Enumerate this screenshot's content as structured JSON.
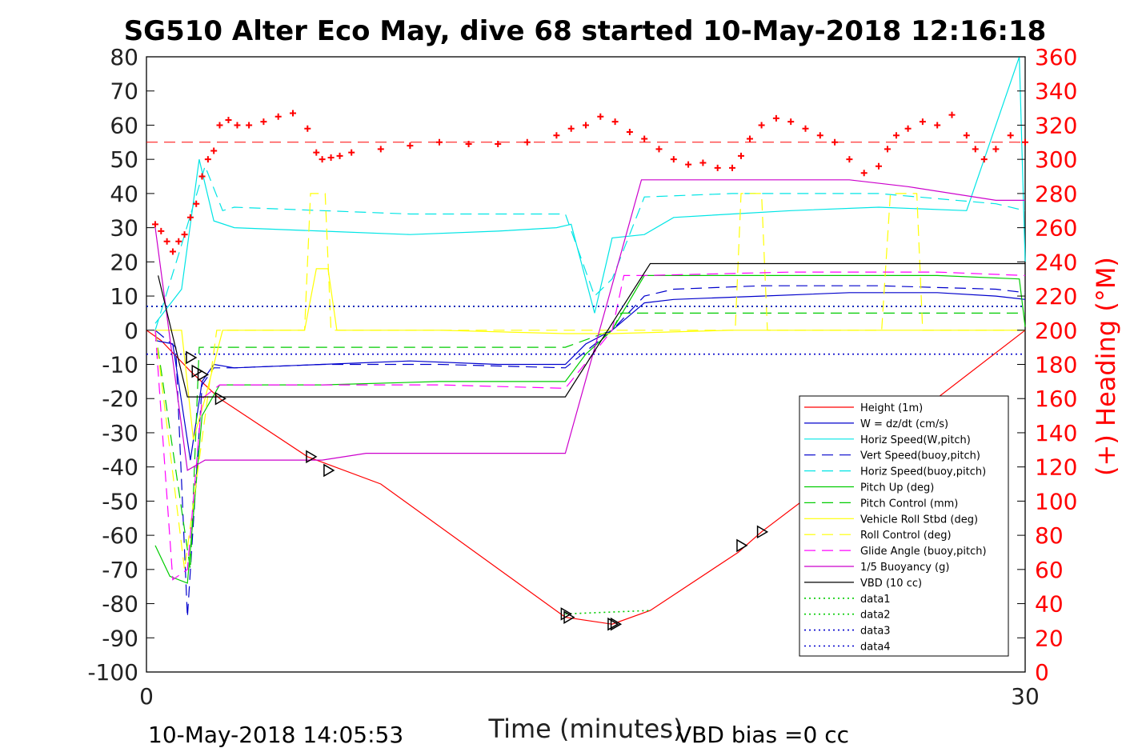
{
  "chart_data": {
    "type": "line",
    "title": "SG510 Alter Eco May, dive 68 started 10-May-2018 12:16:18",
    "xlabel": "Time (minutes)",
    "ylabel": "",
    "y2label": "(+) Heading (°M)",
    "xlim": [
      0,
      30
    ],
    "ylim": [
      -100,
      80
    ],
    "y2lim": [
      0,
      360
    ],
    "x_ticks": [
      "0",
      "30"
    ],
    "y_ticks": [
      "80",
      "70",
      "60",
      "50",
      "40",
      "30",
      "20",
      "10",
      "0",
      "-10",
      "-20",
      "-30",
      "-40",
      "-50",
      "-60",
      "-70",
      "-80",
      "-90",
      "-100"
    ],
    "y2_ticks": [
      "360",
      "340",
      "320",
      "300",
      "280",
      "260",
      "240",
      "220",
      "200",
      "180",
      "160",
      "140",
      "120",
      "100",
      "80",
      "60",
      "40",
      "20",
      "0"
    ],
    "footer_left": "10-May-2018 14:05:53",
    "footer_right": "VBD bias =0 cc",
    "legend_position": "lower-right",
    "series": [
      {
        "name": "Height (1m)",
        "color": "#ff0000",
        "style": "solid",
        "x": [
          0,
          0.5,
          1.5,
          2.5,
          5.5,
          8,
          14.3,
          15.9,
          17.2,
          20.2,
          21,
          25,
          30
        ],
        "y": [
          0,
          -3,
          -12,
          -20,
          -37,
          -45,
          -84,
          -86,
          -82,
          -65,
          -59,
          -33,
          0
        ]
      },
      {
        "name": "W = dz/dt (cm/s)",
        "color": "#0000cc",
        "style": "solid",
        "x": [
          0.3,
          0.9,
          1.5,
          1.9,
          2.3,
          3,
          6,
          9,
          12,
          14.3,
          15,
          15.9,
          17,
          18,
          21,
          24,
          27,
          29,
          30
        ],
        "y": [
          -3,
          -4,
          -38,
          -15,
          -10,
          -11,
          -10,
          -9,
          -10,
          -10,
          -4,
          0,
          8,
          9,
          10,
          11,
          11,
          10,
          9
        ]
      },
      {
        "name": "Horiz Speed(W,pitch)",
        "color": "#00e5e5",
        "style": "solid",
        "x": [
          0.3,
          1.2,
          1.8,
          2.3,
          3,
          6,
          9,
          12,
          14,
          14.5,
          15.3,
          15.9,
          17,
          18,
          20,
          22,
          25,
          28,
          29.8,
          30
        ],
        "y": [
          2,
          12,
          50,
          32,
          30,
          29,
          28,
          29,
          30,
          31,
          5,
          27,
          28,
          33,
          34,
          35,
          36,
          35,
          80,
          20
        ]
      },
      {
        "name": "Vert Speed(buoy,pitch)",
        "color": "#0000cc",
        "style": "dashed",
        "x": [
          0.3,
          1,
          1.4,
          1.9,
          2.3,
          3,
          6,
          10,
          14.3,
          15.9,
          17,
          18,
          21,
          25,
          29,
          30
        ],
        "y": [
          0,
          -5,
          -84,
          -16,
          -11,
          -11,
          -10,
          -10,
          -11,
          0,
          10,
          12,
          13,
          13,
          12,
          11
        ]
      },
      {
        "name": "Horiz Speed(buoy,pitch)",
        "color": "#00e5e5",
        "style": "dashed",
        "x": [
          0.3,
          1.2,
          2,
          2.6,
          3,
          6,
          9,
          14.3,
          15.3,
          15.9,
          17,
          20,
          25,
          29,
          30
        ],
        "y": [
          0,
          25,
          48,
          35,
          36,
          35,
          34,
          34,
          10,
          15,
          39,
          40,
          40,
          37,
          35
        ]
      },
      {
        "name": "Pitch Up (deg)",
        "color": "#00cc00",
        "style": "solid",
        "x": [
          0.3,
          0.8,
          1.4,
          1.9,
          2.5,
          6,
          10,
          14.3,
          15,
          15.9,
          17,
          22,
          27,
          29.8,
          30
        ],
        "y": [
          -63,
          -72,
          -74,
          -25,
          -16,
          -16,
          -15,
          -15,
          -7,
          0,
          16,
          16,
          16,
          15,
          1
        ]
      },
      {
        "name": "Pitch Control (mm)",
        "color": "#00cc00",
        "style": "dashed",
        "x": [
          0.3,
          1.5,
          1.8,
          6,
          10,
          14.3,
          15.9,
          16.2,
          20,
          25,
          30
        ],
        "y": [
          0,
          -70,
          -5,
          -5,
          -5,
          -5,
          0,
          5,
          5,
          5,
          5
        ]
      },
      {
        "name": "Vehicle Roll Stbd (deg)",
        "color": "#ffff00",
        "style": "solid",
        "x": [
          0.3,
          1.2,
          1.6,
          2,
          2.6,
          5.4,
          5.8,
          6.2,
          6.5,
          10,
          14.3,
          15.9,
          20,
          22,
          25,
          29.8,
          30
        ],
        "y": [
          0,
          0,
          -32,
          -20,
          0,
          0,
          18,
          18,
          0,
          0,
          -1,
          -1,
          0,
          0,
          0,
          0,
          0
        ]
      },
      {
        "name": "Roll Control (deg)",
        "color": "#ffff00",
        "style": "dashed",
        "x": [
          0.3,
          1.3,
          1.8,
          2.4,
          5.4,
          5.6,
          6.1,
          6.3,
          14.3,
          15.9,
          20.1,
          20.3,
          21,
          21.2,
          25.1,
          25.4,
          26.3,
          26.5,
          30
        ],
        "y": [
          0,
          -70,
          -38,
          0,
          0,
          40,
          40,
          0,
          0,
          0,
          0,
          40,
          40,
          0,
          0,
          40,
          40,
          0,
          0
        ]
      },
      {
        "name": "Glide Angle (buoy,pitch)",
        "color": "#ff00ff",
        "style": "dashed",
        "x": [
          0.3,
          0.9,
          1.4,
          1.9,
          2.5,
          6,
          10,
          14.3,
          15.9,
          16.3,
          17,
          22,
          27,
          30
        ],
        "y": [
          0,
          -73,
          -70,
          -20,
          -16,
          -16,
          -16,
          -17,
          0,
          16,
          16,
          17,
          17,
          16
        ]
      },
      {
        "name": "1/5 Buoyancy (g)",
        "color": "#cc00cc",
        "style": "solid",
        "x": [
          0.3,
          1.4,
          2,
          2.5,
          6,
          7.5,
          14.3,
          16.9,
          17.4,
          24,
          26,
          29,
          30
        ],
        "y": [
          30,
          -41,
          -38,
          -38,
          -38,
          -36,
          -36,
          44,
          44,
          44,
          42,
          38,
          38
        ]
      },
      {
        "name": "VBD (10 cc)",
        "color": "#000000",
        "style": "solid",
        "x": [
          0.4,
          1.4,
          2.5,
          14.3,
          17.2,
          30
        ],
        "y": [
          16,
          -19.5,
          -19.5,
          -19.5,
          19.5,
          19.5
        ]
      },
      {
        "name": "data1",
        "color": "#00cc00",
        "style": "dotted",
        "x": [
          0,
          30
        ],
        "y": [
          7,
          7
        ]
      },
      {
        "name": "data2",
        "color": "#00cc00",
        "style": "dotted",
        "x": [
          14.3,
          17.2
        ],
        "y": [
          -83,
          -82
        ]
      },
      {
        "name": "data3",
        "color": "#0000cc",
        "style": "dotted",
        "x": [
          0,
          30
        ],
        "y": [
          7,
          7
        ]
      },
      {
        "name": "data4",
        "color": "#0000cc",
        "style": "dotted",
        "x": [
          0,
          30
        ],
        "y": [
          -7,
          -7
        ]
      }
    ],
    "heading_target": {
      "value": 310,
      "color": "#ff0000",
      "style": "dashed"
    },
    "heading": {
      "color": "#ff0000",
      "marker": "+",
      "x": [
        0.3,
        0.5,
        0.7,
        0.9,
        1.1,
        1.3,
        1.5,
        1.7,
        1.9,
        2.1,
        2.3,
        2.5,
        2.8,
        3.1,
        3.5,
        4,
        4.5,
        5,
        5.5,
        5.8,
        6,
        6.3,
        6.6,
        7,
        8,
        9,
        10,
        11,
        12,
        13,
        14,
        14.5,
        15,
        15.5,
        16,
        16.5,
        17,
        17.5,
        18,
        18.5,
        19,
        19.5,
        20,
        20.3,
        20.6,
        21,
        21.5,
        22,
        22.5,
        23,
        23.5,
        24,
        24.5,
        25,
        25.3,
        25.6,
        26,
        26.5,
        27,
        27.5,
        28,
        28.3,
        28.6,
        29,
        29.5,
        30
      ],
      "y": [
        262,
        258,
        252,
        246,
        252,
        256,
        266,
        274,
        290,
        300,
        305,
        320,
        323,
        320,
        320,
        322,
        325,
        327,
        318,
        304,
        300,
        301,
        302,
        304,
        306,
        308,
        310,
        309,
        309,
        310,
        314,
        318,
        320,
        325,
        322,
        316,
        312,
        306,
        300,
        297,
        298,
        295,
        295,
        302,
        312,
        320,
        324,
        322,
        318,
        314,
        310,
        300,
        292,
        296,
        306,
        314,
        318,
        322,
        320,
        326,
        314,
        306,
        300,
        306,
        314,
        310
      ]
    },
    "markers": {
      "symbol": "triangle",
      "x": [
        1.5,
        1.7,
        1.9,
        2.5,
        5.6,
        6.2,
        14.3,
        14.4,
        15.9,
        16,
        20.3,
        21
      ],
      "y": [
        -8,
        -12,
        -13,
        -20,
        -37,
        -41,
        -83,
        -84,
        -86,
        -86,
        -63,
        -59
      ]
    }
  }
}
